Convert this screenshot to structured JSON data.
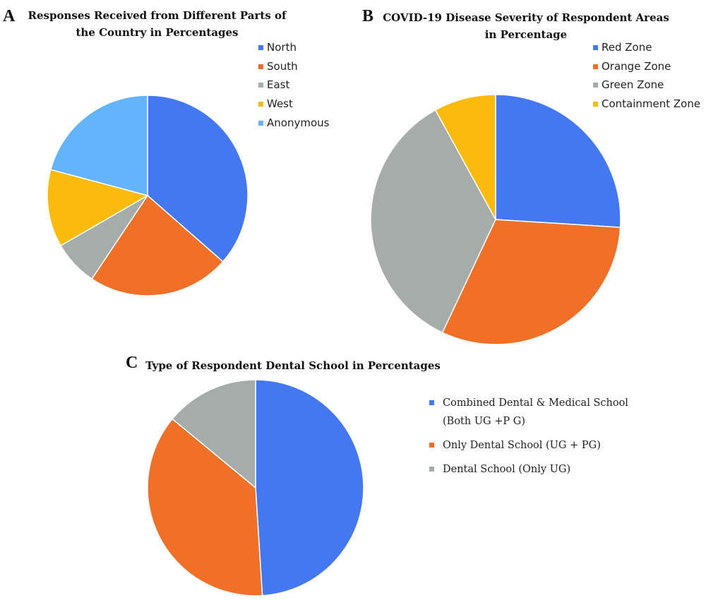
{
  "chart_data": [
    {
      "type": "pie",
      "panel": "A",
      "title": "Responses Received from Different Parts of the Country in Percentages",
      "categories": [
        "North",
        "South",
        "East",
        "West",
        "Anonymous"
      ],
      "values": [
        35,
        22,
        7,
        12,
        20
      ],
      "colors": [
        "#4378f0",
        "#f07027",
        "#a5aca9",
        "#fabb0c",
        "#63b4fa"
      ],
      "legend": "right"
    },
    {
      "type": "pie",
      "panel": "B",
      "title": "COVID-19 Disease Severity of Respondent Areas in Percentage",
      "categories": [
        "Red Zone",
        "Orange Zone",
        "Green Zone",
        "Containment Zone"
      ],
      "values": [
        26,
        31,
        35,
        8
      ],
      "colors": [
        "#4378f0",
        "#f07027",
        "#a5aca9",
        "#fabb0c"
      ],
      "legend": "top-right"
    },
    {
      "type": "pie",
      "panel": "C",
      "title": "Type of Respondent Dental School in Percentages",
      "categories": [
        "Combined Dental & Medical School (Both UG +P G)",
        "Only Dental School (UG + PG)",
        "Dental School (Only UG)"
      ],
      "legend_lines": [
        [
          "Combined Dental & Medical School",
          "(Both UG +P G)"
        ],
        [
          "Only Dental School (UG + PG)"
        ],
        [
          "Dental School (Only UG)"
        ]
      ],
      "values": [
        49,
        37,
        14
      ],
      "colors": [
        "#4378f0",
        "#f07027",
        "#a5aca9"
      ],
      "legend": "right"
    }
  ]
}
